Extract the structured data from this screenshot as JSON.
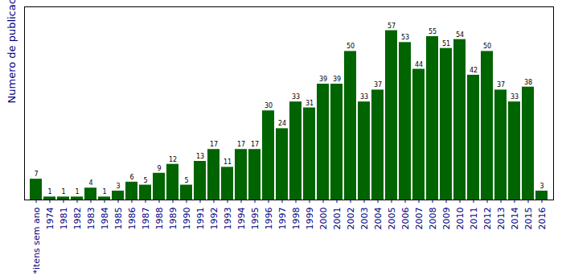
{
  "chart_data": {
    "type": "bar",
    "y_label": "Numero de publicacoes",
    "categories": [
      "*itens sem ano",
      "1974",
      "1981",
      "1982",
      "1983",
      "1984",
      "1985",
      "1986",
      "1987",
      "1988",
      "1989",
      "1990",
      "1991",
      "1992",
      "1993",
      "1994",
      "1995",
      "1996",
      "1997",
      "1998",
      "1999",
      "2000",
      "2001",
      "2002",
      "2003",
      "2004",
      "2005",
      "2006",
      "2007",
      "2008",
      "2009",
      "2010",
      "2011",
      "2012",
      "2013",
      "2014",
      "2015",
      "2016"
    ],
    "values": [
      7,
      1,
      1,
      1,
      4,
      1,
      3,
      6,
      5,
      9,
      12,
      5,
      13,
      17,
      11,
      17,
      17,
      30,
      24,
      33,
      31,
      39,
      39,
      50,
      33,
      37,
      57,
      53,
      44,
      55,
      51,
      54,
      42,
      50,
      37,
      33,
      38,
      3
    ],
    "color": "#006400",
    "ylim": [
      0,
      65
    ],
    "data_labels": true,
    "tick_labels": "x",
    "grid": false
  }
}
